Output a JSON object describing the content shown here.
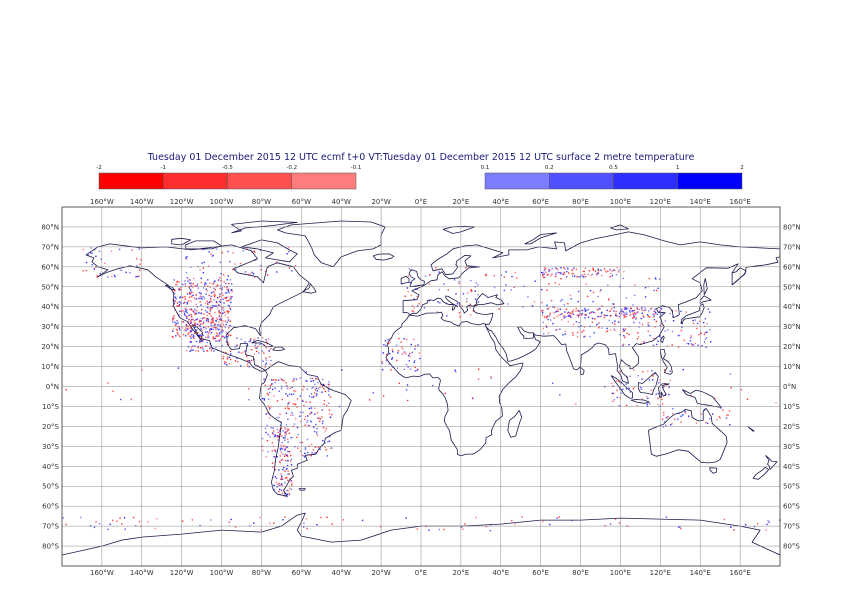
{
  "title": "Tuesday 01 December 2015 12 UTC ecmf t+0 VT:Tuesday 01 December 2015 12 UTC surface  2 metre temperature",
  "colors": {
    "neg_dark": "#ff0000",
    "neg_mid": "#ff2e2e",
    "neg_light": "#ff5050",
    "neg_pale": "#ff7c7c",
    "pos_pale": "#7c7cff",
    "pos_light": "#5050ff",
    "pos_mid": "#2e2eff",
    "pos_dark": "#0000ff",
    "coast": "#1a1a4d",
    "grid": "#8a8a8a"
  },
  "legend": {
    "negative": {
      "ticks": [
        "-2",
        "-1",
        "-0.5",
        "-0.2",
        "-0.1"
      ],
      "bins": [
        {
          "from": -2,
          "to": -1,
          "color": "#ff0000"
        },
        {
          "from": -1,
          "to": -0.5,
          "color": "#ff2e2e"
        },
        {
          "from": -0.5,
          "to": -0.2,
          "color": "#ff5050"
        },
        {
          "from": -0.2,
          "to": -0.1,
          "color": "#ff7c7c"
        }
      ]
    },
    "positive": {
      "ticks": [
        "0.1",
        "0.2",
        "0.5",
        "1",
        "2"
      ],
      "bins": [
        {
          "from": 0.1,
          "to": 0.2,
          "color": "#7c7cff"
        },
        {
          "from": 0.2,
          "to": 0.5,
          "color": "#5050ff"
        },
        {
          "from": 0.5,
          "to": 1,
          "color": "#2e2eff"
        },
        {
          "from": 1,
          "to": 2,
          "color": "#0000ff"
        }
      ]
    }
  },
  "map": {
    "projection": "cylindrical",
    "lon_range": [
      -180,
      180
    ],
    "lat_range": [
      -90,
      90
    ],
    "lon_ticks": [
      "160°W",
      "140°W",
      "120°W",
      "100°W",
      "80°W",
      "60°W",
      "40°W",
      "20°W",
      "0°E",
      "20°E",
      "40°E",
      "60°E",
      "80°E",
      "100°E",
      "120°E",
      "140°E",
      "160°E"
    ],
    "lat_ticks": [
      "80°N",
      "70°N",
      "60°N",
      "50°N",
      "40°N",
      "30°N",
      "20°N",
      "10°N",
      "0°N",
      "10°S",
      "20°S",
      "30°S",
      "40°S",
      "50°S",
      "60°S",
      "70°S",
      "80°S"
    ],
    "grid": true
  }
}
